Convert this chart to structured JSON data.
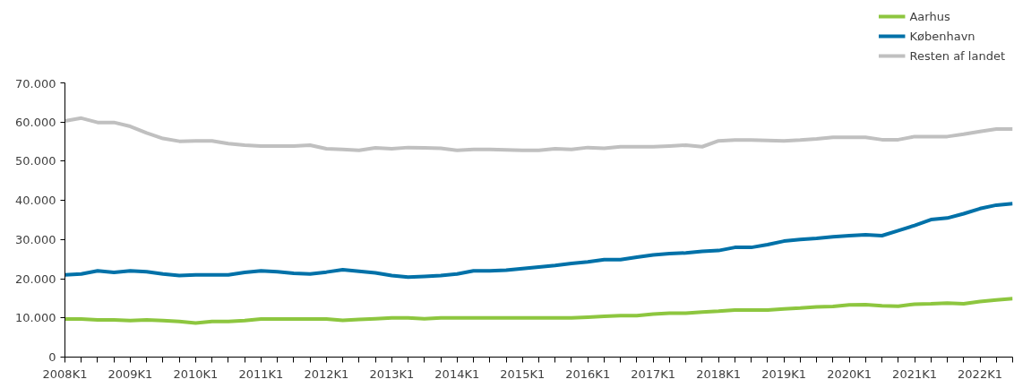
{
  "chart_data": {
    "type": "line",
    "categories": [
      "2008K1",
      null,
      null,
      null,
      "2009K1",
      null,
      null,
      null,
      "2010K1",
      null,
      null,
      null,
      "2011K1",
      null,
      null,
      null,
      "2012K1",
      null,
      null,
      null,
      "2013K1",
      null,
      null,
      null,
      "2014K1",
      null,
      null,
      null,
      "2015K1",
      null,
      null,
      null,
      "2016K1",
      null,
      null,
      null,
      "2017K1",
      null,
      null,
      null,
      "2018K1",
      null,
      null,
      null,
      "2019K1",
      null,
      null,
      null,
      "2020K1",
      null,
      null,
      null,
      "2021K1",
      null,
      null,
      null,
      "2022K1",
      null,
      null
    ],
    "series": [
      {
        "name": "Aarhus",
        "color": "#8dc63f",
        "values": [
          9700,
          9700,
          9500,
          9500,
          9300,
          9500,
          9300,
          9100,
          8700,
          9100,
          9100,
          9300,
          9700,
          9700,
          9700,
          9700,
          9700,
          9400,
          9600,
          9800,
          10000,
          10000,
          9800,
          10000,
          10000,
          10000,
          10000,
          10000,
          10000,
          10000,
          10000,
          10000,
          10200,
          10400,
          10600,
          10600,
          11000,
          11200,
          11200,
          11500,
          11700,
          12000,
          12000,
          12000,
          12300,
          12500,
          12800,
          12900,
          13300,
          13400,
          13100,
          13000,
          13500,
          13600,
          13800,
          13600,
          14200,
          14600,
          14900
        ]
      },
      {
        "name": "København",
        "color": "#0071a8",
        "values": [
          21000,
          21200,
          22000,
          21600,
          22000,
          21800,
          21200,
          20800,
          21000,
          21000,
          21000,
          21600,
          22000,
          21800,
          21400,
          21200,
          21700,
          22300,
          21900,
          21500,
          20800,
          20400,
          20600,
          20800,
          21200,
          22000,
          22000,
          22200,
          22600,
          23000,
          23400,
          23900,
          24300,
          24900,
          24900,
          25500,
          26100,
          26400,
          26600,
          27000,
          27200,
          28000,
          28000,
          28700,
          29600,
          30000,
          30300,
          30700,
          31000,
          31200,
          31000,
          32300,
          33600,
          35100,
          35500,
          36600,
          37900,
          38800,
          39200
        ]
      },
      {
        "name": "Resten af landet",
        "color": "#c0c0c0",
        "values": [
          60300,
          61000,
          59900,
          59900,
          58900,
          57200,
          55800,
          55100,
          55200,
          55200,
          54500,
          54100,
          53900,
          53900,
          53900,
          54100,
          53200,
          53000,
          52800,
          53400,
          53200,
          53500,
          53400,
          53300,
          52800,
          53000,
          53000,
          52900,
          52800,
          52800,
          53200,
          53000,
          53500,
          53300,
          53700,
          53700,
          53700,
          53900,
          54100,
          53700,
          55200,
          55400,
          55400,
          55300,
          55200,
          55400,
          55700,
          56100,
          56100,
          56100,
          55500,
          55500,
          56300,
          56300,
          56300,
          56900,
          57600,
          58200,
          58200
        ]
      }
    ],
    "ylim": [
      0,
      70000
    ],
    "yticks": [
      0,
      {
        "value": 10000,
        "label": "10.000"
      },
      {
        "value": 20000,
        "label": "20.000"
      },
      {
        "value": 30000,
        "label": "30.000"
      },
      {
        "value": 40000,
        "label": "40.000"
      },
      {
        "value": 50000,
        "label": "50.000"
      },
      {
        "value": 60000,
        "label": "60.000"
      },
      {
        "value": 70000,
        "label": "70.000"
      }
    ],
    "grid": false,
    "legend": "top right",
    "marker": "none",
    "line_style": "solid"
  }
}
